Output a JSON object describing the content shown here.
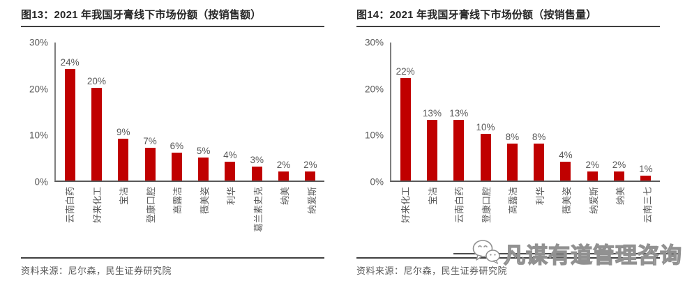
{
  "charts": [
    {
      "title": "图13：2021 年我国牙膏线下市场份额（按销售额）",
      "source": "资料来源：尼尔森，民生证券研究院",
      "chart_data": {
        "type": "bar",
        "categories": [
          "云南白药",
          "好来化工",
          "宝洁",
          "登康口腔",
          "高露洁",
          "薇美姿",
          "利华",
          "葛兰素史克",
          "纳美",
          "纳爱斯"
        ],
        "values": [
          24,
          20,
          9,
          7,
          6,
          5,
          4,
          3,
          2,
          2
        ],
        "value_labels": [
          "24%",
          "20%",
          "9%",
          "7%",
          "6%",
          "5%",
          "4%",
          "3%",
          "2%",
          "2%"
        ],
        "yticks": [
          "30%",
          "20%",
          "10%",
          "0%"
        ],
        "ylim": [
          0,
          30
        ],
        "grid": "off",
        "legend": "none",
        "bar_color": "#c00000"
      }
    },
    {
      "title": "图14：2021 年我国牙膏线下市场份额（按销售量）",
      "source": "资料来源：尼尔森，民生证券研究院",
      "chart_data": {
        "type": "bar",
        "categories": [
          "好来化工",
          "宝洁",
          "云南白药",
          "登康口腔",
          "高露洁",
          "利华",
          "薇美姿",
          "纳爱斯",
          "纳美",
          "云南三七"
        ],
        "values": [
          22,
          13,
          13,
          10,
          8,
          8,
          4,
          2,
          2,
          1
        ],
        "value_labels": [
          "22%",
          "13%",
          "13%",
          "10%",
          "8%",
          "8%",
          "4%",
          "2%",
          "2%",
          "1%"
        ],
        "yticks": [
          "30%",
          "20%",
          "10%",
          "0%"
        ],
        "ylim": [
          0,
          30
        ],
        "grid": "off",
        "legend": "none",
        "bar_color": "#c00000"
      }
    }
  ],
  "watermark": {
    "icon": "wechat-icon",
    "text": "凡谋有道管理咨询"
  },
  "colors": {
    "bar": "#c00000",
    "axis": "#7f7f7f",
    "label_text": "#595959",
    "title_text": "#262626",
    "rule": "#3f3f3f"
  }
}
